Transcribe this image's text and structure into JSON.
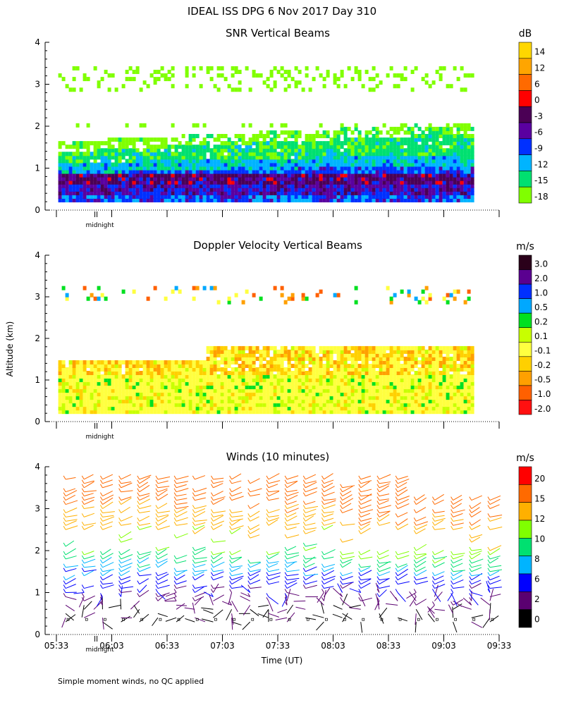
{
  "page": {
    "title": "IDEAL ISS DPG    6 Nov 2017 Day 310",
    "footnote": "Simple moment winds, no QC applied"
  },
  "chart_data": [
    {
      "type": "heatmap",
      "title": "SNR Vertical Beams",
      "ylabel": "Altitude (km)",
      "ylim": [
        0,
        4
      ],
      "yticks": [
        "0",
        "1",
        "2",
        "3",
        "4"
      ],
      "xlim": [
        "05:33",
        "09:33"
      ],
      "marker_label": "midnight",
      "colorbar": {
        "unit": "dB",
        "labels": [
          "14",
          "12",
          "6",
          "0",
          "-3",
          "-6",
          "-9",
          "-12",
          "-15",
          "-18"
        ],
        "colors": [
          "#ffd700",
          "#ffa500",
          "#ff6a00",
          "#ff0000",
          "#4b0055",
          "#5a00a0",
          "#0030ff",
          "#00b4ff",
          "#00e070",
          "#80ff00"
        ]
      },
      "field": {
        "layers": [
          {
            "from_km": 0.2,
            "to_km": 0.9,
            "level": "-6"
          },
          {
            "from_km": 0.9,
            "to_km": 1.2,
            "level": "-12"
          },
          {
            "from_km": 1.2,
            "to_km": 1.6,
            "level": "-15"
          },
          {
            "from_km": 2.8,
            "to_km": 3.3,
            "level": "-18"
          }
        ],
        "inversion_km_start": 0.7,
        "inversion_km_end": 0.75
      }
    },
    {
      "type": "heatmap",
      "title": "Doppler Velocity Vertical Beams",
      "ylabel": "Altitude (km)",
      "ylim": [
        0,
        4
      ],
      "yticks": [
        "0",
        "1",
        "2",
        "3",
        "4"
      ],
      "xlim": [
        "05:33",
        "09:33"
      ],
      "marker_label": "midnight",
      "colorbar": {
        "unit": "m/s",
        "labels": [
          "3.0",
          "2.0",
          "1.0",
          "0.5",
          "0.2",
          "0.1",
          "-0.1",
          "-0.2",
          "-0.5",
          "-1.0",
          "-2.0"
        ],
        "colors": [
          "#2a001a",
          "#5a0090",
          "#0030ff",
          "#00a8ff",
          "#00e020",
          "#c8ff00",
          "#ffff40",
          "#ffd000",
          "#ffa000",
          "#ff6000",
          "#ff1010"
        ]
      }
    },
    {
      "type": "scatter",
      "title": "Winds (10 minutes)",
      "xlabel": "Time (UT)",
      "ylabel": "Altitude (km)",
      "ylim": [
        0,
        4
      ],
      "yticks": [
        "0",
        "1",
        "2",
        "3",
        "4"
      ],
      "xlim": [
        "05:33",
        "09:33"
      ],
      "xticks": [
        "05:33",
        "06:03",
        "06:33",
        "07:03",
        "07:33",
        "08:03",
        "08:33",
        "09:03",
        "09:33"
      ],
      "marker_label": "midnight",
      "colorbar": {
        "unit": "m/s",
        "labels": [
          "20",
          "15",
          "12",
          "10",
          "8",
          "6",
          "2",
          "0"
        ],
        "colors": [
          "#ff0000",
          "#ff6a00",
          "#ffb000",
          "#80ff00",
          "#00e070",
          "#00b4ff",
          "#0000ff",
          "#5a0070",
          "#000000"
        ]
      },
      "profiles": {
        "interval_min": 10,
        "count": 24,
        "speed_by_altitude": [
          {
            "km": 0.2,
            "speed": 1
          },
          {
            "km": 0.6,
            "speed": 2
          },
          {
            "km": 1.0,
            "speed": 4
          },
          {
            "km": 1.4,
            "speed": 6
          },
          {
            "km": 1.8,
            "speed": 9
          },
          {
            "km": 2.2,
            "speed": 11
          },
          {
            "km": 2.8,
            "speed": 14
          },
          {
            "km": 3.5,
            "speed": 17
          }
        ]
      }
    }
  ]
}
